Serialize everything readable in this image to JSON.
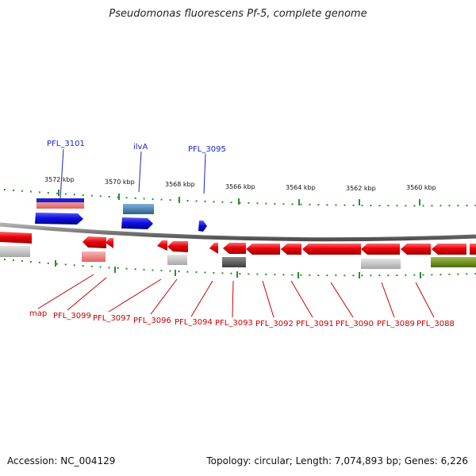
{
  "title": "Pseudomonas fluorescens Pf-5, complete genome",
  "footer": {
    "accession": "Accession: NC_004129",
    "summary": "Topology: circular; Length: 7,074,893 bp; Genes: 6,226"
  },
  "scale_labels": [
    "3572 kbp",
    "3570 kbp",
    "3568 kbp",
    "3566 kbp",
    "3564 kbp",
    "3562 kbp",
    "3560 kbp"
  ],
  "top_labels": [
    "PFL_3101",
    "ilvA",
    "PFL_3095"
  ],
  "bottom_labels": [
    "map",
    "PFL_3099",
    "PFL_3097",
    "PFL_3096",
    "PFL_3094",
    "PFL_3093",
    "PFL_3092",
    "PFL_3091",
    "PFL_3090",
    "PFL_3089",
    "PFL_3088"
  ],
  "colors": {
    "backbone": "#808080",
    "tick": "#2e8b2e",
    "gene_red": "#e8000b",
    "gene_blue": "#1010e0",
    "label_blue": "#1a22c8",
    "label_red": "#c80000",
    "olive": "#6b8e23"
  }
}
